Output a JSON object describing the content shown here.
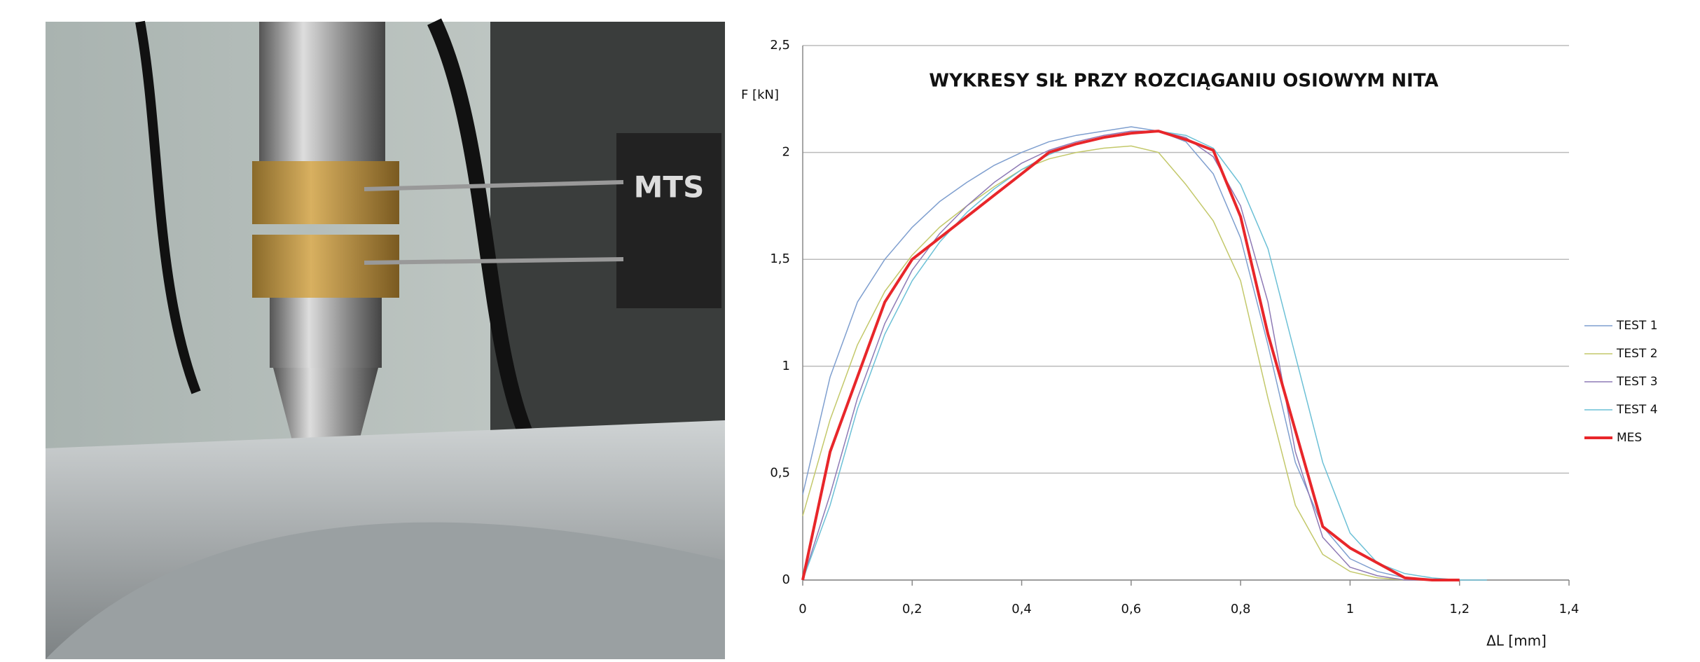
{
  "photo": {
    "label": "MTS"
  },
  "chart_data": {
    "type": "line",
    "title": "WYKRESY SIŁ PRZY ROZCIĄGANIU OSIOWYM NITA",
    "y_label": "F [kN]",
    "x_label": "ΔL [mm]",
    "x": [
      0,
      0.05,
      0.1,
      0.15,
      0.2,
      0.25,
      0.3,
      0.35,
      0.4,
      0.45,
      0.5,
      0.55,
      0.6,
      0.65,
      0.7,
      0.75,
      0.8,
      0.85,
      0.9,
      0.95,
      1.0,
      1.05,
      1.1,
      1.15,
      1.2,
      1.25
    ],
    "series": [
      {
        "name": "TEST 1",
        "color": "#7f9fcf",
        "width": 1.5,
        "values": [
          0.4,
          0.95,
          1.3,
          1.5,
          1.65,
          1.77,
          1.86,
          1.94,
          2.0,
          2.05,
          2.08,
          2.1,
          2.12,
          2.1,
          2.05,
          1.9,
          1.6,
          1.1,
          0.55,
          0.25,
          0.1,
          0.04,
          0.01,
          0,
          0,
          null
        ]
      },
      {
        "name": "TEST 2",
        "color": "#c3c86a",
        "width": 1.5,
        "values": [
          0.3,
          0.75,
          1.1,
          1.35,
          1.52,
          1.65,
          1.75,
          1.84,
          1.92,
          1.97,
          2.0,
          2.02,
          2.03,
          2.0,
          1.85,
          1.68,
          1.4,
          0.85,
          0.35,
          0.12,
          0.04,
          0.01,
          0,
          0,
          0,
          null
        ]
      },
      {
        "name": "TEST 3",
        "color": "#8e7ab5",
        "width": 1.5,
        "values": [
          0,
          0.4,
          0.85,
          1.2,
          1.45,
          1.62,
          1.75,
          1.86,
          1.95,
          2.01,
          2.05,
          2.08,
          2.1,
          2.1,
          2.07,
          1.98,
          1.75,
          1.3,
          0.6,
          0.2,
          0.06,
          0.02,
          0,
          0,
          0,
          null
        ]
      },
      {
        "name": "TEST 4",
        "color": "#6cc0d6",
        "width": 1.5,
        "values": [
          0,
          0.35,
          0.8,
          1.15,
          1.4,
          1.58,
          1.72,
          1.83,
          1.92,
          1.99,
          2.04,
          2.07,
          2.09,
          2.1,
          2.08,
          2.02,
          1.85,
          1.55,
          1.05,
          0.55,
          0.22,
          0.08,
          0.03,
          0.01,
          0,
          0
        ]
      },
      {
        "name": "MES",
        "color": "#e8262a",
        "width": 4,
        "values": [
          0,
          0.6,
          0.95,
          1.3,
          1.5,
          1.6,
          1.7,
          1.8,
          1.9,
          2.0,
          2.04,
          2.07,
          2.09,
          2.1,
          2.06,
          2.01,
          1.7,
          1.15,
          0.7,
          0.25,
          0.15,
          0.08,
          0.01,
          0,
          0,
          null
        ]
      }
    ],
    "xlim": [
      0,
      1.4
    ],
    "xticks": [
      0,
      {
        "value": 0.2,
        "label": "0,2"
      },
      {
        "value": 0.4,
        "label": "0,4"
      },
      {
        "value": 0.6,
        "label": "0,6"
      },
      {
        "value": 0.8,
        "label": "0,8"
      },
      1,
      {
        "value": 1.2,
        "label": "1,2"
      },
      {
        "value": 1.4,
        "label": "1,4"
      }
    ],
    "ylim": [
      0,
      2.5
    ],
    "yticks": [
      0,
      {
        "value": 0.5,
        "label": "0,5"
      },
      1,
      {
        "value": 1.5,
        "label": "1,5"
      },
      2,
      {
        "value": 2.5,
        "label": "2,5"
      }
    ],
    "grid": true,
    "legend": "right"
  }
}
